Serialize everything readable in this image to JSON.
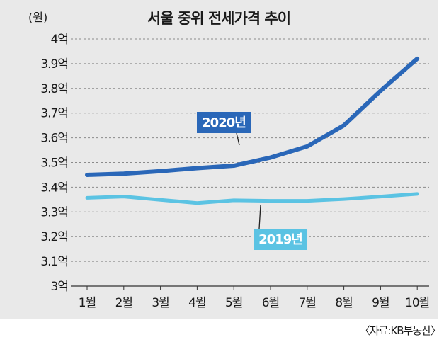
{
  "chart_data": {
    "type": "line",
    "title": "서울 중위 전세가격 추이",
    "unit_label": "(원)",
    "source": "〈자료:KB부동산〉",
    "categories": [
      "1월",
      "2월",
      "3월",
      "4월",
      "5월",
      "6월",
      "7월",
      "8월",
      "9월",
      "10월"
    ],
    "y_ticks": [
      {
        "value": 3.0,
        "label": "3억"
      },
      {
        "value": 3.1,
        "label": "3.1억"
      },
      {
        "value": 3.2,
        "label": "3.2억"
      },
      {
        "value": 3.3,
        "label": "3.3억"
      },
      {
        "value": 3.4,
        "label": "3.4억"
      },
      {
        "value": 3.5,
        "label": "3.5억"
      },
      {
        "value": 3.6,
        "label": "3.6억"
      },
      {
        "value": 3.7,
        "label": "3.7억"
      },
      {
        "value": 3.8,
        "label": "3.8억"
      },
      {
        "value": 3.9,
        "label": "3.9억"
      },
      {
        "value": 4.0,
        "label": "4억"
      }
    ],
    "ylim": [
      3.0,
      4.0
    ],
    "grid": true,
    "series": [
      {
        "name": "2020년",
        "color": "#2a67b8",
        "values": [
          3.45,
          3.455,
          3.465,
          3.477,
          3.487,
          3.52,
          3.565,
          3.65,
          3.79,
          3.92
        ]
      },
      {
        "name": "2019년",
        "color": "#5bc3e3",
        "values": [
          3.357,
          3.362,
          3.349,
          3.336,
          3.347,
          3.345,
          3.345,
          3.352,
          3.362,
          3.373
        ]
      }
    ]
  }
}
